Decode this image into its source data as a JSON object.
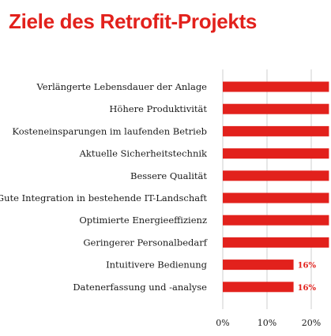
{
  "chart_data": {
    "type": "bar",
    "orientation": "horizontal",
    "title": "Ziele des Retrofit-Projekts",
    "categories": [
      "Verlängerte Lebensdauer der Anlage",
      "Höhere Produktivität",
      "Kosteneinsparungen im laufenden Betrieb",
      "Aktuelle Sicherheitstechnik",
      "Bessere Qualität",
      "Gute Integration in bestehende IT-Landschaft",
      "Optimierte Energieeffizienz",
      "Geringerer Personalbedarf",
      "Intuitivere Bedienung",
      "Datenerfassung und -analyse"
    ],
    "values": [
      24,
      24,
      24,
      24,
      24,
      24,
      24,
      24,
      16,
      16
    ],
    "data_labels": [
      "",
      "",
      "",
      "",
      "",
      "",
      "",
      "",
      "16%",
      "16%"
    ],
    "xtick_labels": [
      "0%",
      "10%",
      "20%"
    ],
    "xticks": [
      0,
      10,
      20
    ],
    "xlim": [
      0,
      24
    ],
    "grid": true,
    "colors": {
      "bar": "#e2211c",
      "title": "#e2211c",
      "grid": "#cfcfcf",
      "label": "#e2211c"
    }
  }
}
